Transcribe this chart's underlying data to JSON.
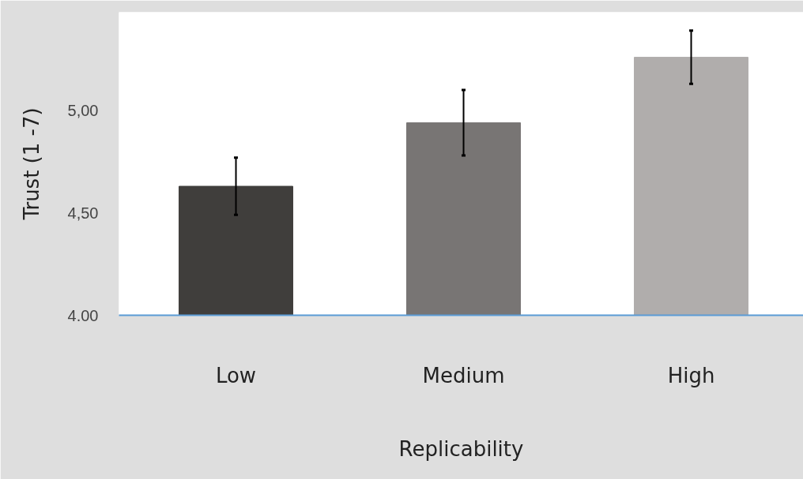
{
  "chart_data": {
    "type": "bar",
    "xlabel": "Replicability",
    "ylabel": "Trust (1 -7)",
    "categories": [
      "Low",
      "Medium",
      "High"
    ],
    "values": [
      4.63,
      4.94,
      5.26
    ],
    "errors": [
      0.14,
      0.16,
      0.13
    ],
    "colors": [
      "#403e3c",
      "#787574",
      "#b0adac"
    ],
    "ylim": [
      4.0,
      5.48
    ],
    "yticks": [
      {
        "value": 4.0,
        "label": "4.00"
      },
      {
        "value": 4.5,
        "label": "4,50"
      },
      {
        "value": 5.0,
        "label": "5,00"
      }
    ],
    "grid": false
  }
}
